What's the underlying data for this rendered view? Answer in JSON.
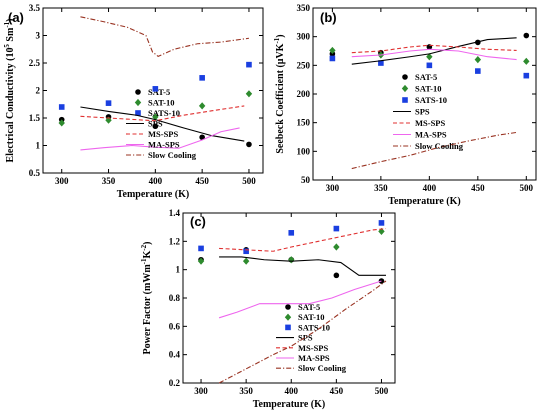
{
  "chart_data": [
    {
      "type": "scatter",
      "panel_label": "(a)",
      "xlabel": "Temperature (K)",
      "ylabel": "Electrical Conductivity (10",
      "ylabel_sup": "5",
      "ylabel_tail": " Sm",
      "ylabel_sup2": "-1",
      "ylabel_end": ")",
      "xlim": [
        280,
        515
      ],
      "ylim": [
        0.5,
        3.5
      ],
      "xticks": [
        "300",
        "350",
        "400",
        "450",
        "500"
      ],
      "yticks": [
        "0.5",
        "1",
        "1.5",
        "2",
        "2.5",
        "3",
        "3.5"
      ],
      "legend_position": "right",
      "series": [
        {
          "name": "SAT-5",
          "kind": "marker",
          "marker": "circle",
          "color": "#000000",
          "x": [
            300,
            350,
            400,
            450,
            500
          ],
          "y": [
            1.47,
            1.52,
            1.35,
            1.15,
            1.02
          ]
        },
        {
          "name": "SAT-10",
          "kind": "marker",
          "marker": "diamond",
          "color": "#2e8b2e",
          "x": [
            300,
            350,
            400,
            450,
            500
          ],
          "y": [
            1.41,
            1.46,
            1.52,
            1.72,
            1.94
          ]
        },
        {
          "name": "SATS-10",
          "kind": "marker",
          "marker": "square",
          "color": "#1a3fe0",
          "x": [
            300,
            350,
            400,
            450,
            500
          ],
          "y": [
            1.7,
            1.77,
            2.03,
            2.23,
            2.47
          ]
        },
        {
          "name": "SPS",
          "kind": "line",
          "dash": "solid",
          "color": "#000000",
          "x": [
            320,
            350,
            380,
            400,
            430,
            460,
            495
          ],
          "y": [
            1.7,
            1.62,
            1.55,
            1.47,
            1.32,
            1.18,
            1.08
          ]
        },
        {
          "name": "MS-SPS",
          "kind": "line",
          "dash": "dash",
          "color": "#e03030",
          "x": [
            320,
            350,
            380,
            400,
            430,
            460,
            495
          ],
          "y": [
            1.53,
            1.5,
            1.47,
            1.45,
            1.55,
            1.63,
            1.72
          ]
        },
        {
          "name": "MA-SPS",
          "kind": "line",
          "dash": "solid",
          "color": "#ee66ee",
          "x": [
            320,
            345,
            375,
            400,
            425,
            450,
            470,
            490
          ],
          "y": [
            0.92,
            0.96,
            1.0,
            0.97,
            0.95,
            1.1,
            1.25,
            1.32
          ]
        },
        {
          "name": "Slow Cooling",
          "kind": "line",
          "dash": "dashdot",
          "color": "#993322",
          "x": [
            320,
            345,
            370,
            390,
            397,
            403,
            420,
            445,
            470,
            500
          ],
          "y": [
            3.34,
            3.25,
            3.15,
            3.0,
            2.7,
            2.62,
            2.75,
            2.85,
            2.88,
            2.95
          ]
        }
      ]
    },
    {
      "type": "scatter",
      "panel_label": "(b)",
      "xlabel": "Temperature (K)",
      "ylabel": "Seebeck Coefficient (μVK",
      "ylabel_sup": "-1",
      "ylabel_end": ")",
      "xlim": [
        280,
        510
      ],
      "ylim": [
        50,
        350
      ],
      "xticks": [
        "300",
        "350",
        "400",
        "450",
        "500"
      ],
      "yticks": [
        "50",
        "100",
        "150",
        "200",
        "250",
        "300",
        "350"
      ],
      "legend_position": "right",
      "series": [
        {
          "name": "SAT-5",
          "kind": "marker",
          "marker": "circle",
          "color": "#000000",
          "x": [
            300,
            350,
            400,
            450,
            500
          ],
          "y": [
            270,
            272,
            282,
            290,
            302
          ]
        },
        {
          "name": "SAT-10",
          "kind": "marker",
          "marker": "diamond",
          "color": "#2e8b2e",
          "x": [
            300,
            350,
            400,
            450,
            500
          ],
          "y": [
            276,
            268,
            265,
            260,
            257
          ]
        },
        {
          "name": "SATS-10",
          "kind": "marker",
          "marker": "square",
          "color": "#1a3fe0",
          "x": [
            300,
            350,
            400,
            450,
            500
          ],
          "y": [
            262,
            254,
            250,
            240,
            232
          ]
        },
        {
          "name": "SPS",
          "kind": "line",
          "dash": "solid",
          "color": "#000000",
          "x": [
            320,
            350,
            380,
            400,
            430,
            460,
            490
          ],
          "y": [
            252,
            258,
            265,
            270,
            283,
            295,
            298
          ]
        },
        {
          "name": "MS-SPS",
          "kind": "line",
          "dash": "dash",
          "color": "#e03030",
          "x": [
            320,
            350,
            380,
            400,
            430,
            460,
            490
          ],
          "y": [
            272,
            275,
            282,
            285,
            282,
            278,
            276
          ]
        },
        {
          "name": "MA-SPS",
          "kind": "line",
          "dash": "solid",
          "color": "#ee66ee",
          "x": [
            320,
            350,
            380,
            400,
            430,
            460,
            490
          ],
          "y": [
            265,
            268,
            275,
            278,
            275,
            265,
            260
          ]
        },
        {
          "name": "Slow Cooling",
          "kind": "line",
          "dash": "dashdot",
          "color": "#993322",
          "x": [
            320,
            350,
            380,
            410,
            440,
            470,
            490
          ],
          "y": [
            70,
            82,
            93,
            107,
            118,
            128,
            133
          ]
        }
      ]
    },
    {
      "type": "scatter",
      "panel_label": "(c)",
      "xlabel": "Temperature (K)",
      "ylabel": "Power Factor (mWm",
      "ylabel_sup": "-1",
      "ylabel_tail": "K",
      "ylabel_sup2": "-2",
      "ylabel_end": ")",
      "xlim": [
        280,
        515
      ],
      "ylim": [
        0.2,
        1.4
      ],
      "xticks": [
        "300",
        "350",
        "400",
        "450",
        "500"
      ],
      "yticks": [
        "0.2",
        "0.4",
        "0.6",
        "0.8",
        "1",
        "1.2",
        "1.4"
      ],
      "legend_position": "lower-right",
      "series": [
        {
          "name": "SAT-5",
          "kind": "marker",
          "marker": "circle",
          "color": "#000000",
          "x": [
            300,
            350,
            400,
            450,
            500
          ],
          "y": [
            1.07,
            1.14,
            1.07,
            0.96,
            0.92
          ]
        },
        {
          "name": "SAT-10",
          "kind": "marker",
          "marker": "diamond",
          "color": "#2e8b2e",
          "x": [
            300,
            350,
            400,
            450,
            500
          ],
          "y": [
            1.06,
            1.06,
            1.07,
            1.16,
            1.27
          ]
        },
        {
          "name": "SATS-10",
          "kind": "marker",
          "marker": "square",
          "color": "#1a3fe0",
          "x": [
            300,
            350,
            400,
            450,
            500
          ],
          "y": [
            1.15,
            1.13,
            1.26,
            1.29,
            1.33
          ]
        },
        {
          "name": "SPS",
          "kind": "line",
          "dash": "solid",
          "color": "#000000",
          "x": [
            320,
            345,
            370,
            400,
            430,
            455,
            475,
            505
          ],
          "y": [
            1.09,
            1.09,
            1.07,
            1.06,
            1.07,
            1.05,
            0.96,
            0.96
          ]
        },
        {
          "name": "MS-SPS",
          "kind": "line",
          "dash": "dash",
          "color": "#e03030",
          "x": [
            320,
            350,
            380,
            400,
            430,
            460,
            490,
            505
          ],
          "y": [
            1.15,
            1.14,
            1.13,
            1.16,
            1.2,
            1.24,
            1.28,
            1.29
          ]
        },
        {
          "name": "MA-SPS",
          "kind": "line",
          "dash": "solid",
          "color": "#ee66ee",
          "x": [
            320,
            340,
            365,
            390,
            420,
            445,
            470,
            500
          ],
          "y": [
            0.66,
            0.7,
            0.76,
            0.76,
            0.76,
            0.8,
            0.86,
            0.92
          ]
        },
        {
          "name": "Slow Cooling",
          "kind": "line",
          "dash": "dashdot",
          "color": "#993322",
          "x": [
            320,
            350,
            380,
            400,
            430,
            460,
            490,
            505
          ],
          "y": [
            0.2,
            0.3,
            0.4,
            0.46,
            0.58,
            0.72,
            0.85,
            0.92
          ]
        }
      ]
    }
  ]
}
